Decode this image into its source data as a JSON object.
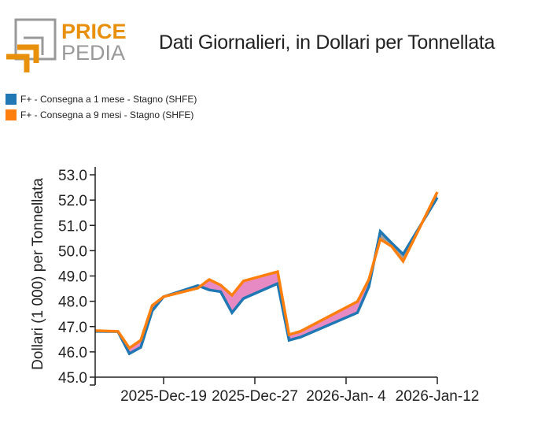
{
  "brand": {
    "line1": "PRICE",
    "line2": "PEDIA",
    "accent": "#e8900c",
    "gray": "#999999"
  },
  "header": {
    "title": "Dati Giornalieri, in Dollari per Tonnellata"
  },
  "legend": [
    {
      "label": "F+ - Consegna a 1 mese - Stagno (SHFE)",
      "color": "#1f77b4"
    },
    {
      "label": "F+ - Consegna a 9 mesi - Stagno (SHFE)",
      "color": "#ff7f0e"
    }
  ],
  "chart_data": {
    "type": "line",
    "title": "Dati Giornalieri, in Dollari per Tonnellata",
    "xlabel": "",
    "ylabel": "Dollari (1 000) per Tonnellata",
    "ylim": [
      45.0,
      53.0
    ],
    "yticks": [
      "45.0",
      "46.0",
      "47.0",
      "48.0",
      "49.0",
      "50.0",
      "51.0",
      "52.0",
      "53.0"
    ],
    "xticks": [
      "2025-Dec-19",
      "2025-Dec-27",
      "2026-Jan- 4",
      "2026-Jan-12"
    ],
    "xtick_days": [
      6,
      14,
      22,
      30
    ],
    "x_days_range": [
      0,
      30
    ],
    "fill_color": "#e78ac3",
    "x_days": [
      0,
      2,
      3,
      4,
      5,
      6,
      9,
      10,
      11,
      12,
      13,
      16,
      17,
      18,
      23,
      24,
      25,
      26,
      27,
      30
    ],
    "x": [
      "2025-Dec-13",
      "2025-Dec-15",
      "2025-Dec-16",
      "2025-Dec-17",
      "2025-Dec-18",
      "2025-Dec-19",
      "2025-Dec-22",
      "2025-Dec-23",
      "2025-Dec-24",
      "2025-Dec-25",
      "2025-Dec-26",
      "2025-Dec-29",
      "2025-Dec-30",
      "2025-Dec-31",
      "2026-Jan-5",
      "2026-Jan-6",
      "2026-Jan-7",
      "2026-Jan-8",
      "2026-Jan-9",
      "2026-Jan-12"
    ],
    "series": [
      {
        "name": "F+ - Consegna a 1 mese - Stagno (SHFE)",
        "color": "#1f77b4",
        "values": [
          46.81,
          46.8,
          45.93,
          46.18,
          47.62,
          48.18,
          48.62,
          48.45,
          48.38,
          47.55,
          48.11,
          48.7,
          46.46,
          46.58,
          47.55,
          48.58,
          50.76,
          50.3,
          49.86,
          52.1
        ]
      },
      {
        "name": "F+ - Consegna a 9 mesi - Stagno (SHFE)",
        "color": "#ff7f0e",
        "values": [
          46.84,
          46.81,
          46.15,
          46.46,
          47.83,
          48.18,
          48.52,
          48.86,
          48.64,
          48.24,
          48.8,
          49.17,
          46.68,
          46.81,
          47.99,
          48.86,
          50.45,
          50.17,
          49.58,
          52.32
        ]
      }
    ]
  }
}
